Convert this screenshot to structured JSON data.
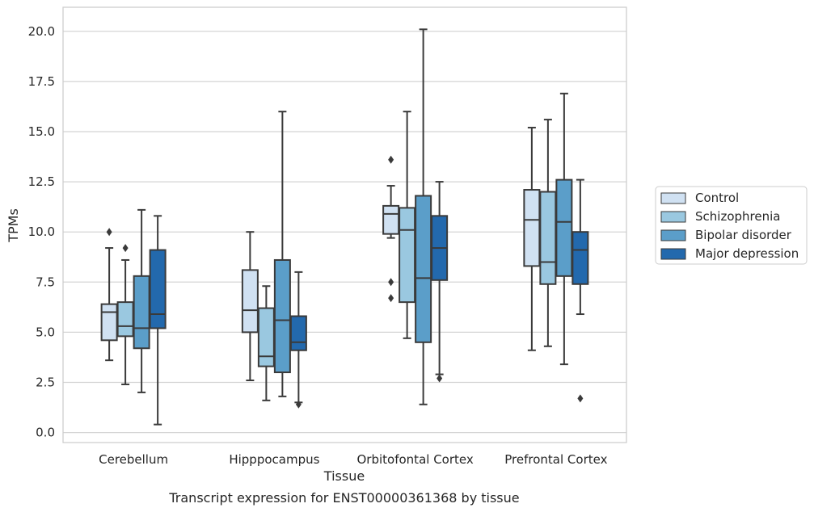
{
  "chart_data": {
    "type": "box",
    "title": "",
    "caption": "Transcript expression for ENST00000361368 by tissue",
    "xlabel": "Tissue",
    "ylabel": "TPMs",
    "ylim": [
      -0.5,
      21.2
    ],
    "yticks": [
      "0.0",
      "2.5",
      "5.0",
      "7.5",
      "10.0",
      "12.5",
      "15.0",
      "17.5",
      "20.0"
    ],
    "ytick_values": [
      0,
      2.5,
      5,
      7.5,
      10,
      12.5,
      15,
      17.5,
      20
    ],
    "grid": "horizontal",
    "legend_position": "right",
    "categories": [
      "Cerebellum",
      "Hipppocampus",
      "Orbitofontal Cortex",
      "Prefrontal Cortex"
    ],
    "series": [
      {
        "name": "Control",
        "color": "#d0e1f2",
        "boxes": [
          {
            "whisker_low": 3.6,
            "q1": 4.6,
            "median": 6.0,
            "q3": 6.4,
            "whisker_high": 9.2,
            "outliers": [
              10.0
            ]
          },
          {
            "whisker_low": 2.6,
            "q1": 5.0,
            "median": 6.1,
            "q3": 8.1,
            "whisker_high": 10.0,
            "outliers": []
          },
          {
            "whisker_low": 9.7,
            "q1": 9.9,
            "median": 10.9,
            "q3": 11.3,
            "whisker_high": 12.3,
            "outliers": [
              13.6,
              7.5,
              6.7
            ]
          },
          {
            "whisker_low": 4.1,
            "q1": 8.3,
            "median": 10.6,
            "q3": 12.1,
            "whisker_high": 15.2,
            "outliers": []
          }
        ]
      },
      {
        "name": "Schizophrenia",
        "color": "#9ac8e0",
        "boxes": [
          {
            "whisker_low": 2.4,
            "q1": 4.8,
            "median": 5.3,
            "q3": 6.5,
            "whisker_high": 8.6,
            "outliers": [
              9.2
            ]
          },
          {
            "whisker_low": 1.6,
            "q1": 3.3,
            "median": 3.8,
            "q3": 6.2,
            "whisker_high": 7.3,
            "outliers": []
          },
          {
            "whisker_low": 4.7,
            "q1": 6.5,
            "median": 10.1,
            "q3": 11.2,
            "whisker_high": 16.0,
            "outliers": []
          },
          {
            "whisker_low": 4.3,
            "q1": 7.4,
            "median": 8.5,
            "q3": 12.0,
            "whisker_high": 15.6,
            "outliers": []
          }
        ]
      },
      {
        "name": "Bipolar disorder",
        "color": "#5b9ec9",
        "boxes": [
          {
            "whisker_low": 2.0,
            "q1": 4.2,
            "median": 5.2,
            "q3": 7.8,
            "whisker_high": 11.1,
            "outliers": []
          },
          {
            "whisker_low": 1.8,
            "q1": 3.0,
            "median": 5.6,
            "q3": 8.6,
            "whisker_high": 16.0,
            "outliers": []
          },
          {
            "whisker_low": 1.4,
            "q1": 4.5,
            "median": 7.7,
            "q3": 11.8,
            "whisker_high": 20.1,
            "outliers": []
          },
          {
            "whisker_low": 3.4,
            "q1": 7.8,
            "median": 10.5,
            "q3": 12.6,
            "whisker_high": 16.9,
            "outliers": []
          }
        ]
      },
      {
        "name": "Major depression",
        "color": "#2369ad",
        "boxes": [
          {
            "whisker_low": 0.4,
            "q1": 5.2,
            "median": 5.9,
            "q3": 9.1,
            "whisker_high": 10.8,
            "outliers": []
          },
          {
            "whisker_low": 1.5,
            "q1": 4.1,
            "median": 4.5,
            "q3": 5.8,
            "whisker_high": 8.0,
            "outliers": [
              1.4
            ]
          },
          {
            "whisker_low": 2.9,
            "q1": 7.6,
            "median": 9.2,
            "q3": 10.8,
            "whisker_high": 12.5,
            "outliers": [
              2.7
            ]
          },
          {
            "whisker_low": 5.9,
            "q1": 7.4,
            "median": 9.1,
            "q3": 10.0,
            "whisker_high": 12.6,
            "outliers": [
              1.7
            ]
          }
        ]
      }
    ]
  }
}
